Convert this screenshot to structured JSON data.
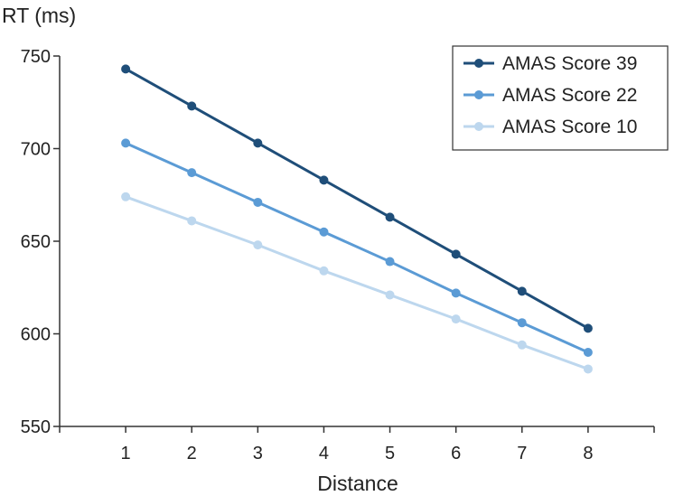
{
  "chart_data": {
    "type": "line",
    "title": "",
    "ylabel": "RT (ms)",
    "xlabel": "Distance",
    "x": [
      1,
      2,
      3,
      4,
      5,
      6,
      7,
      8
    ],
    "xlim": [
      0.0,
      9.0
    ],
    "ylim": [
      550,
      750
    ],
    "yticks": [
      550,
      600,
      650,
      700,
      750
    ],
    "grid": false,
    "legend_position": "top-right",
    "series": [
      {
        "name": "AMAS Score 39",
        "color": "#1f4e79",
        "values": [
          743,
          723,
          703,
          683,
          663,
          643,
          623,
          603
        ]
      },
      {
        "name": "AMAS Score 22",
        "color": "#5b9bd5",
        "values": [
          703,
          687,
          671,
          655,
          639,
          622,
          606,
          590
        ]
      },
      {
        "name": "AMAS Score 10",
        "color": "#bdd7ee",
        "values": [
          674,
          661,
          648,
          634,
          621,
          608,
          594,
          581
        ]
      }
    ]
  }
}
